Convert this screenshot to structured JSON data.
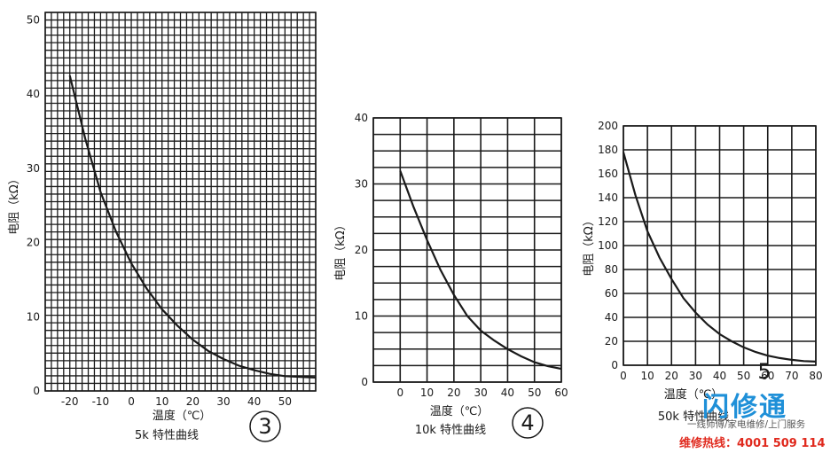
{
  "chart_data": [
    {
      "type": "line",
      "panel_number": "3",
      "caption": "5k 特性曲线",
      "xlabel": "温度（℃）",
      "ylabel": "电阻（kΩ）",
      "xlim": [
        -28,
        60
      ],
      "ylim": [
        0,
        51
      ],
      "x_ticks": [
        -20,
        -10,
        0,
        10,
        20,
        30,
        40,
        50
      ],
      "y_ticks": [
        0,
        10,
        20,
        30,
        40,
        50
      ],
      "grid": "dense",
      "series": [
        {
          "x": [
            -20,
            -15,
            -10,
            -5,
            0,
            5,
            10,
            15,
            20,
            25,
            30,
            35,
            40,
            45,
            50,
            55,
            60
          ],
          "y": [
            42.5,
            34,
            26.8,
            21.5,
            17.2,
            13.8,
            11,
            8.8,
            6.9,
            5.4,
            4.3,
            3.4,
            2.8,
            2.3,
            2.0,
            1.9,
            1.8
          ]
        }
      ]
    },
    {
      "type": "line",
      "panel_number": "4",
      "caption": "10k 特性曲线",
      "xlabel": "温度（℃）",
      "ylabel": "电阻（kΩ）",
      "xlim": [
        -10,
        60
      ],
      "ylim": [
        0,
        40
      ],
      "x_ticks": [
        0,
        10,
        20,
        30,
        40,
        50,
        60
      ],
      "y_ticks": [
        0,
        10,
        20,
        30,
        40
      ],
      "grid": "on",
      "series": [
        {
          "x": [
            0,
            5,
            10,
            15,
            20,
            25,
            30,
            35,
            40,
            45,
            50,
            55,
            60
          ],
          "y": [
            32,
            26.5,
            21.5,
            17,
            13.2,
            10,
            7.8,
            6.3,
            5,
            3.9,
            3.0,
            2.4,
            2.0
          ]
        }
      ]
    },
    {
      "type": "line",
      "panel_number": "5",
      "caption": "50k 特性曲线",
      "xlabel": "温度（℃）",
      "ylabel": "电阻（kΩ）",
      "xlim": [
        0,
        80
      ],
      "ylim": [
        0,
        200
      ],
      "x_ticks": [
        0,
        10,
        20,
        30,
        40,
        50,
        60,
        70,
        80
      ],
      "y_ticks": [
        0,
        20,
        40,
        60,
        80,
        100,
        120,
        140,
        160,
        180,
        200
      ],
      "grid": "on",
      "series": [
        {
          "x": [
            0,
            5,
            10,
            15,
            20,
            25,
            30,
            35,
            40,
            45,
            50,
            55,
            60,
            65,
            70,
            75,
            80
          ],
          "y": [
            178,
            142,
            112,
            90,
            72,
            56,
            44,
            34,
            26,
            20,
            15,
            11,
            8,
            6,
            4.5,
            3.5,
            3
          ]
        }
      ]
    }
  ],
  "watermark": {
    "brand": "闪修通",
    "subtitle": "一线师傅/家电维修/上门服务",
    "hotline": "维修热线：4001 509 114",
    "brand_color": "#1f90d8",
    "hotline_color": "#e0291d"
  }
}
